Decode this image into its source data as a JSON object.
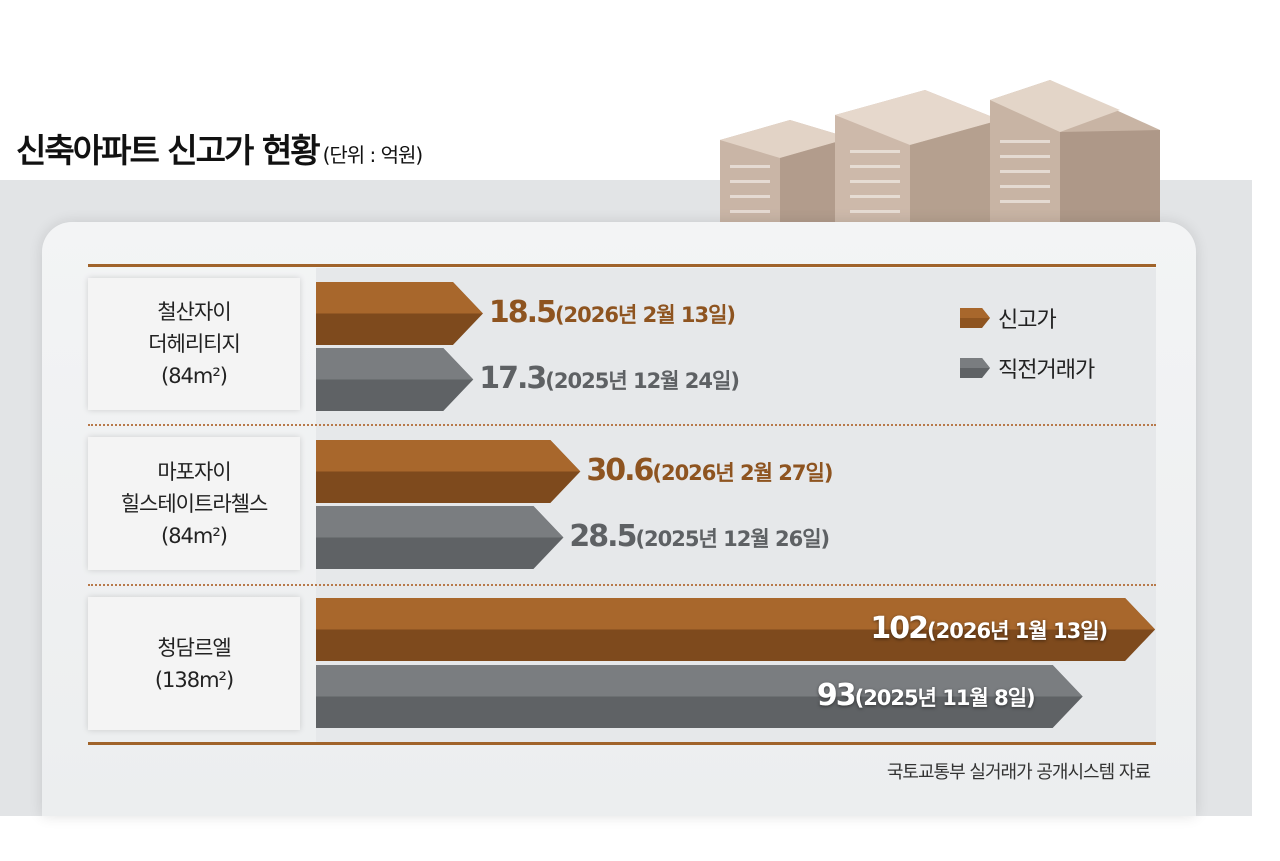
{
  "title": "신축아파트 신고가 현황",
  "unit": "(단위 : 억원)",
  "legend": {
    "new_high": "신고가",
    "previous": "직전거래가"
  },
  "source": "국토교통부 실거래가 공개시스템 자료",
  "colors": {
    "new_high": "#8e5420",
    "previous": "#6a6d70",
    "rule": "#a0632a"
  },
  "chart_data": {
    "type": "bar",
    "orientation": "horizontal",
    "title": "신축아파트 신고가 현황",
    "unit": "억원",
    "categories": [
      {
        "name": [
          "철산자이",
          "더헤리티지",
          "(84m²)"
        ]
      },
      {
        "name": [
          "마포자이",
          "힐스테이트라첼스",
          "(84m²)"
        ]
      },
      {
        "name": [
          "청담르엘",
          "(138m²)"
        ]
      }
    ],
    "series": [
      {
        "name": "신고가",
        "values": [
          18.5,
          30.6,
          102
        ],
        "labels": [
          "18.5",
          "30.6",
          "102"
        ],
        "dates": [
          "(2026년 2월 13일)",
          "(2026년 2월 27일)",
          "(2026년 1월 13일)"
        ]
      },
      {
        "name": "직전거래가",
        "values": [
          17.3,
          28.5,
          93
        ],
        "labels": [
          "17.3",
          "28.5",
          "93"
        ],
        "dates": [
          "(2025년 12월 24일)",
          "(2025년 12월 26일)",
          "(2025년 11월 8일)"
        ]
      }
    ]
  }
}
